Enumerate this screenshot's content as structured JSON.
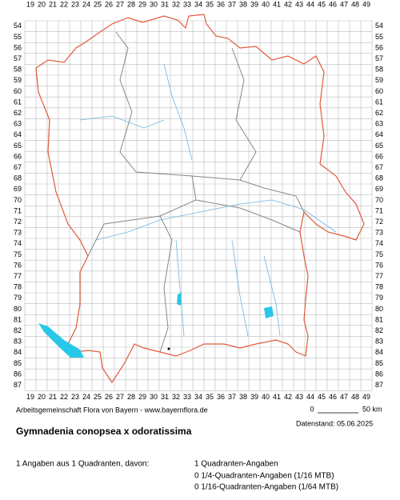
{
  "map": {
    "columns": [
      19,
      20,
      21,
      22,
      23,
      24,
      25,
      26,
      27,
      28,
      29,
      30,
      31,
      32,
      33,
      34,
      35,
      36,
      37,
      38,
      39,
      40,
      41,
      42,
      43,
      44,
      45,
      46,
      47,
      48,
      49
    ],
    "rows": [
      54,
      55,
      56,
      57,
      58,
      59,
      60,
      61,
      62,
      63,
      64,
      65,
      66,
      67,
      68,
      69,
      70,
      71,
      72,
      73,
      74,
      75,
      76,
      77,
      78,
      79,
      80,
      81,
      82,
      83,
      84,
      85,
      86,
      87
    ]
  },
  "footer": {
    "credit": "Arbeitsgemeinschaft Flora von Bayern - www.bayernflora.de",
    "scale_start": "0",
    "scale_end": "50 km",
    "date": "Datenstand: 05.06.2025"
  },
  "title": "Gymnadenia conopsea x odoratissima",
  "summary": {
    "total": "1 Angaben aus 1 Quadranten, davon:",
    "lines": [
      "1 Quadranten-Angaben",
      "0 1/4-Quadranten-Angaben (1/16 MTB)",
      "0 1/16-Quadranten-Angaben (1/64 MTB)"
    ]
  }
}
